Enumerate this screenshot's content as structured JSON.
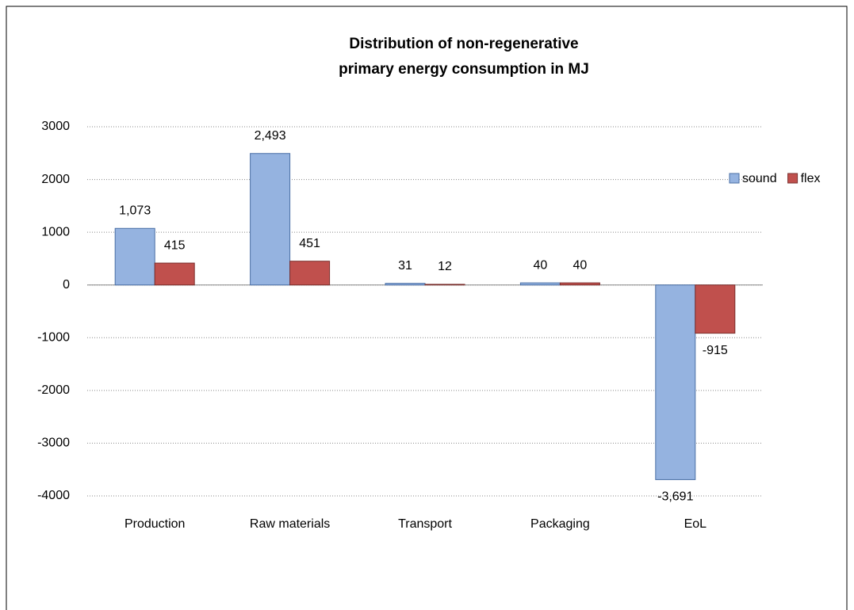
{
  "chart_data": {
    "type": "bar",
    "title": [
      "Distribution of non-regenerative",
      "primary energy consumption in MJ"
    ],
    "categories": [
      "Production",
      "Raw materials",
      "Transport",
      "Packaging",
      "EoL"
    ],
    "series": [
      {
        "name": "sound",
        "color": "#95b3e0",
        "values": [
          1073,
          2493,
          31,
          40,
          -3691
        ],
        "value_labels": [
          "1,073",
          "2,493",
          "31",
          "40",
          "-3,691"
        ]
      },
      {
        "name": "flex",
        "color": "#c0504d",
        "values": [
          415,
          451,
          12,
          40,
          -915
        ],
        "value_labels": [
          "415",
          "451",
          "12",
          "40",
          "-915"
        ]
      }
    ],
    "ylim": [
      -4000,
      3000
    ],
    "yticks": [
      -4000,
      -3000,
      -2000,
      -1000,
      0,
      1000,
      2000,
      3000
    ],
    "grid": true,
    "legend": "right"
  }
}
